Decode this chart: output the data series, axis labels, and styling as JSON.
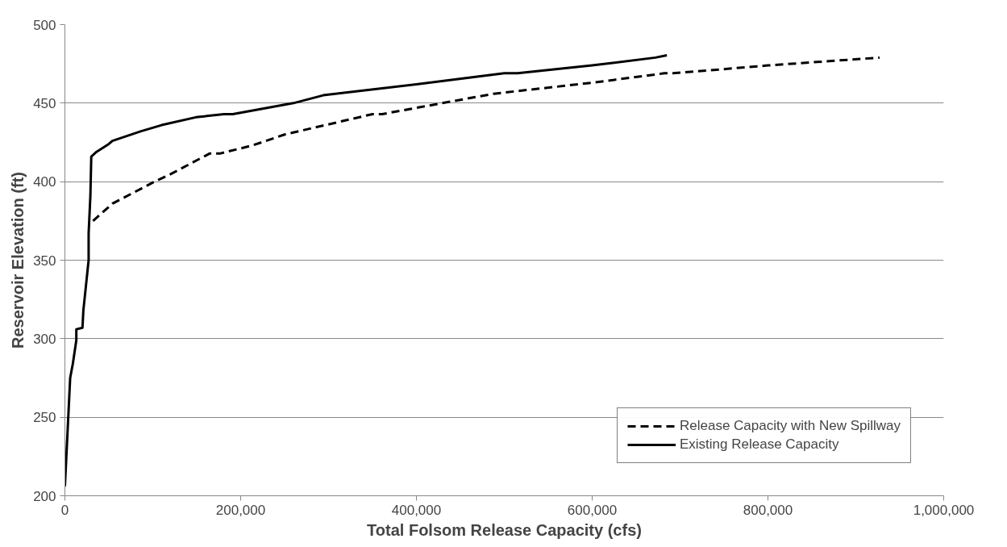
{
  "chart_data": {
    "type": "line",
    "xlabel": "Total Folsom Release Capacity (cfs)",
    "ylabel": "Reservoir Elevation (ft)",
    "xlim": [
      0,
      1000000
    ],
    "ylim": [
      200,
      500
    ],
    "xticks": [
      0,
      {
        "value": 200000,
        "label": "200,000"
      },
      {
        "value": 400000,
        "label": "400,000"
      },
      {
        "value": 600000,
        "label": "600,000"
      },
      {
        "value": 800000,
        "label": "800,000"
      },
      {
        "value": 1000000,
        "label": "1,000,000"
      }
    ],
    "yticks": [
      200,
      250,
      300,
      350,
      400,
      450,
      500
    ],
    "grid": "y",
    "legend": "bottom right",
    "marker": "none",
    "series": [
      {
        "name": "Release Capacity with New Spillway",
        "color": "#000000",
        "line_style": "dashed",
        "x": [
          32000,
          54000,
          102000,
          121000,
          165000,
          177000,
          213000,
          250000,
          350000,
          361000,
          400000,
          488000,
          600000,
          682000,
          692000,
          800000,
          927000
        ],
        "values": [
          375,
          386,
          400,
          405,
          418,
          418,
          423,
          430,
          443,
          443,
          447,
          456,
          463,
          469,
          469,
          474,
          479
        ]
      },
      {
        "name": "Existing Release Capacity",
        "color": "#000000",
        "line_style": "solid",
        "x": [
          0,
          6000,
          9000,
          13000,
          13000,
          20000,
          21000,
          24000,
          27000,
          27000,
          29000,
          30000,
          36000,
          50000,
          54000,
          86000,
          110000,
          149000,
          181000,
          191000,
          260000,
          294000,
          400000,
          500000,
          515000,
          600000,
          672000,
          685000
        ],
        "values": [
          206,
          275,
          284,
          299,
          306,
          307,
          318,
          334,
          350,
          367,
          391,
          416,
          419,
          424,
          426,
          432,
          436,
          441,
          443,
          443,
          450,
          455,
          462,
          469,
          469,
          474,
          479,
          480.5
        ]
      }
    ]
  }
}
